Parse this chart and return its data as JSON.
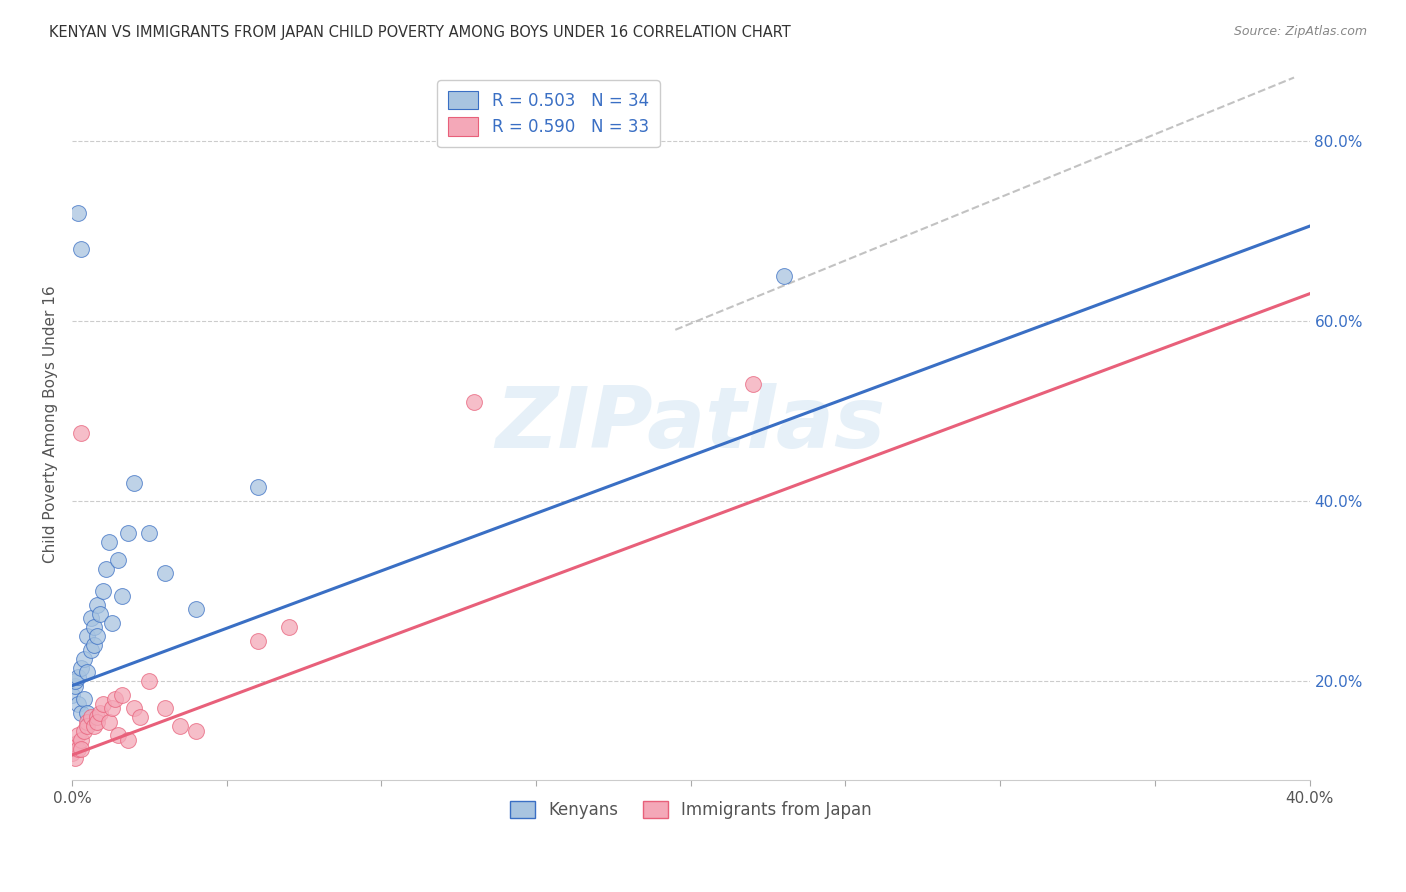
{
  "title": "KENYAN VS IMMIGRANTS FROM JAPAN CHILD POVERTY AMONG BOYS UNDER 16 CORRELATION CHART",
  "source": "Source: ZipAtlas.com",
  "ylabel": "Child Poverty Among Boys Under 16",
  "xlim": [
    0.0,
    0.4
  ],
  "ylim": [
    0.09,
    0.88
  ],
  "xticks": [
    0.0,
    0.05,
    0.1,
    0.15,
    0.2,
    0.25,
    0.3,
    0.35,
    0.4
  ],
  "xticklabels": [
    "0.0%",
    "",
    "",
    "",
    "",
    "",
    "",
    "",
    "40.0%"
  ],
  "yticks_right": [
    0.2,
    0.4,
    0.6,
    0.8
  ],
  "ytick_right_labels": [
    "20.0%",
    "40.0%",
    "60.0%",
    "80.0%"
  ],
  "legend1_label": "R = 0.503   N = 34",
  "legend2_label": "R = 0.590   N = 33",
  "legend_labels": [
    "Kenyans",
    "Immigrants from Japan"
  ],
  "color_kenyan_fill": "#a8c4e0",
  "color_japan_fill": "#f4a8b8",
  "color_kenyan_line": "#3a6fc4",
  "color_japan_line": "#e8607a",
  "color_diag": "#b8b8b8",
  "watermark_text": "ZIPatlas",
  "background_color": "#ffffff",
  "grid_color": "#cccccc",
  "kenyan_x": [
    0.0,
    0.001,
    0.001,
    0.002,
    0.002,
    0.002,
    0.003,
    0.003,
    0.003,
    0.004,
    0.004,
    0.005,
    0.005,
    0.005,
    0.006,
    0.006,
    0.007,
    0.007,
    0.008,
    0.008,
    0.009,
    0.01,
    0.011,
    0.012,
    0.013,
    0.015,
    0.016,
    0.018,
    0.02,
    0.025,
    0.03,
    0.04,
    0.06,
    0.23
  ],
  "kenyan_y": [
    0.185,
    0.195,
    0.2,
    0.175,
    0.205,
    0.72,
    0.165,
    0.215,
    0.68,
    0.18,
    0.225,
    0.25,
    0.165,
    0.21,
    0.235,
    0.27,
    0.26,
    0.24,
    0.285,
    0.25,
    0.275,
    0.3,
    0.325,
    0.355,
    0.265,
    0.335,
    0.295,
    0.365,
    0.42,
    0.365,
    0.32,
    0.28,
    0.415,
    0.65
  ],
  "japan_x": [
    0.0,
    0.001,
    0.001,
    0.002,
    0.002,
    0.003,
    0.003,
    0.004,
    0.005,
    0.005,
    0.006,
    0.007,
    0.008,
    0.008,
    0.009,
    0.01,
    0.012,
    0.013,
    0.014,
    0.015,
    0.016,
    0.018,
    0.02,
    0.022,
    0.025,
    0.03,
    0.035,
    0.04,
    0.06,
    0.07,
    0.13,
    0.003,
    0.22
  ],
  "japan_y": [
    0.12,
    0.115,
    0.13,
    0.125,
    0.14,
    0.135,
    0.125,
    0.145,
    0.155,
    0.15,
    0.16,
    0.15,
    0.16,
    0.155,
    0.165,
    0.175,
    0.155,
    0.17,
    0.18,
    0.14,
    0.185,
    0.135,
    0.17,
    0.16,
    0.2,
    0.17,
    0.15,
    0.145,
    0.245,
    0.26,
    0.51,
    0.475,
    0.53
  ],
  "blue_line_x": [
    0.0,
    0.4
  ],
  "blue_line_y": [
    0.195,
    0.705
  ],
  "pink_line_x": [
    0.0,
    0.4
  ],
  "pink_line_y": [
    0.118,
    0.63
  ],
  "diag_line_x": [
    0.195,
    0.395
  ],
  "diag_line_y": [
    0.59,
    0.87
  ]
}
